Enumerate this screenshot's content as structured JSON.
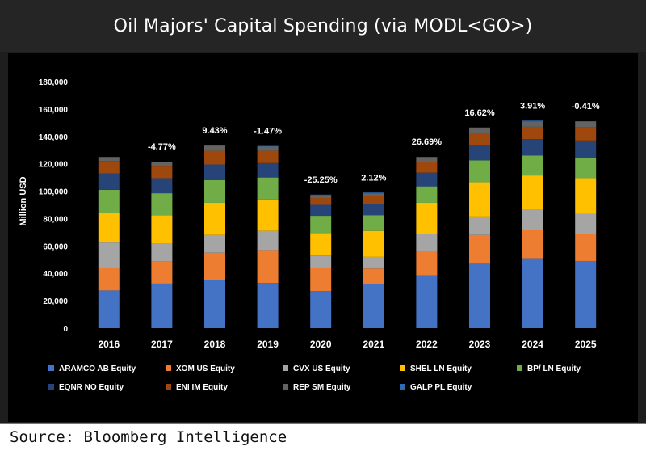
{
  "header": {
    "title": "Oil Majors' Capital Spending (via MODL<GO>)"
  },
  "footer": {
    "source": "Source: Bloomberg Intelligence"
  },
  "colors": {
    "background": "#1e1e1e",
    "panel": "#000000",
    "text": "#ffffff"
  },
  "chart_data": {
    "type": "bar",
    "stacked": true,
    "title": "",
    "xlabel": "",
    "ylabel": "Million USD",
    "ylim": [
      0,
      180000
    ],
    "yticks": [
      0,
      20000,
      40000,
      60000,
      80000,
      100000,
      120000,
      140000,
      160000,
      180000
    ],
    "ytick_labels": [
      "0",
      "20,000",
      "40,000",
      "60,000",
      "80,000",
      "100,000",
      "120,000",
      "140,000",
      "160,000",
      "180,000"
    ],
    "grid": false,
    "legend_position": "bottom",
    "categories": [
      "2016",
      "2017",
      "2018",
      "2019",
      "2020",
      "2021",
      "2022",
      "2023",
      "2024",
      "2025"
    ],
    "growth_labels": [
      "",
      "-4.77%",
      "9.43%",
      "-1.47%",
      "-25.25%",
      "2.12%",
      "26.69%",
      "16.62%",
      "3.91%",
      "-0.41%"
    ],
    "series": [
      {
        "name": "ARAMCO AB Equity",
        "color": "#4472C4",
        "values": [
          27500,
          32500,
          35000,
          33000,
          27000,
          32000,
          38500,
          47000,
          51000,
          49000
        ]
      },
      {
        "name": "XOM US Equity",
        "color": "#ED7D31",
        "values": [
          16500,
          16000,
          20000,
          24000,
          17000,
          11500,
          18000,
          21000,
          21000,
          20000
        ]
      },
      {
        "name": "CVX US Equity",
        "color": "#A5A5A5",
        "values": [
          18500,
          13000,
          13000,
          14000,
          9000,
          8500,
          12500,
          13500,
          14500,
          14500
        ]
      },
      {
        "name": "SHEL LN Equity",
        "color": "#FFC000",
        "values": [
          21500,
          21000,
          23500,
          23000,
          16500,
          19000,
          22500,
          25000,
          25000,
          26000
        ]
      },
      {
        "name": "BP/ LN Equity",
        "color": "#70AD47",
        "values": [
          17000,
          16000,
          16500,
          16000,
          12500,
          11500,
          12000,
          16000,
          14500,
          15000
        ]
      },
      {
        "name": "EQNR NO Equity",
        "color": "#264478",
        "values": [
          12000,
          11000,
          11500,
          10500,
          8000,
          8000,
          10000,
          11000,
          12000,
          12500
        ]
      },
      {
        "name": "ENI IM Equity",
        "color": "#9E480E",
        "values": [
          9000,
          8500,
          10000,
          9000,
          5000,
          6000,
          8000,
          9000,
          9000,
          9500
        ]
      },
      {
        "name": "REP SM Equity",
        "color": "#636363",
        "values": [
          2500,
          3000,
          3500,
          3000,
          2000,
          2000,
          3000,
          3500,
          4000,
          4000
        ]
      },
      {
        "name": "GALP PL Equity",
        "color": "#2E6BB5",
        "values": [
          500,
          500,
          500,
          500,
          500,
          500,
          500,
          500,
          500,
          500
        ]
      }
    ]
  }
}
